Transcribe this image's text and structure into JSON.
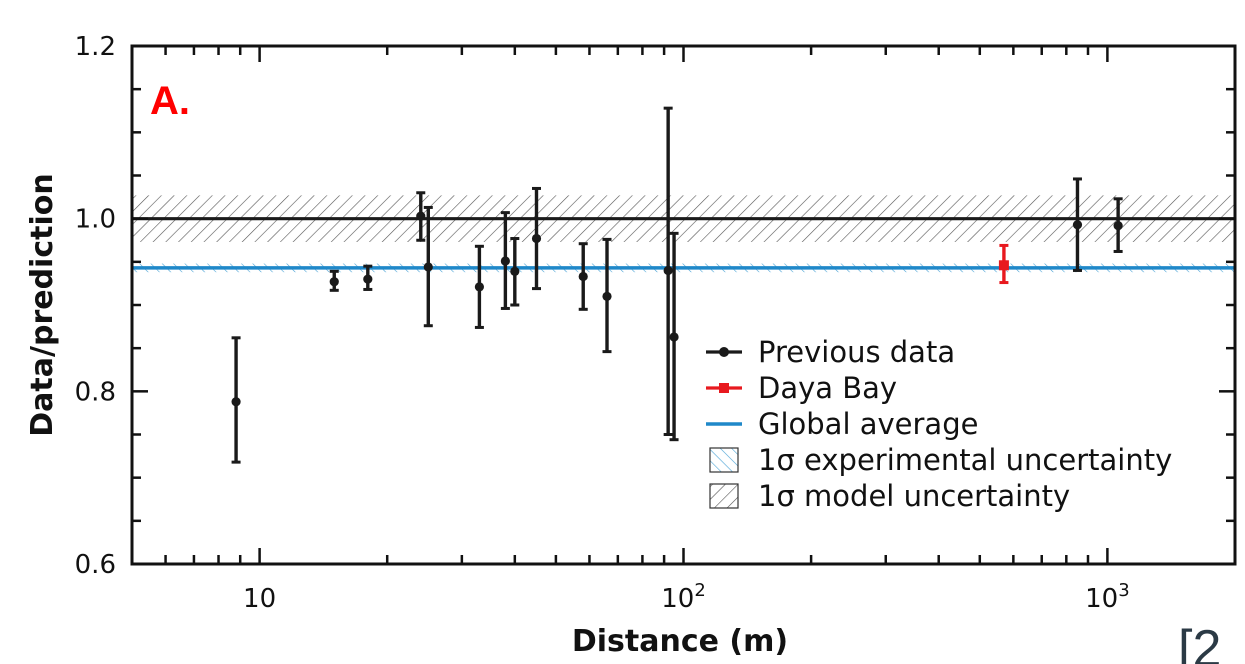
{
  "panel_label": "A.",
  "citation": "[2",
  "colors": {
    "previous": "#1a1a1a",
    "daya_bay": "#e8191f",
    "global": "#1f88c9",
    "panel_label": "#ff0000"
  },
  "chart_data": {
    "type": "scatter",
    "xlabel": "Distance (m)",
    "ylabel": "Data/prediction",
    "xscale": "log",
    "xlim": [
      5,
      2000
    ],
    "ylim": [
      0.6,
      1.2
    ],
    "x_ticks": [
      {
        "value": 10,
        "label": "10",
        "sup": ""
      },
      {
        "value": 100,
        "label": "10",
        "sup": "2"
      },
      {
        "value": 1000,
        "label": "10",
        "sup": "3"
      }
    ],
    "y_ticks": [
      {
        "value": 0.6,
        "label": "0.6"
      },
      {
        "value": 0.8,
        "label": "0.8"
      },
      {
        "value": 1.0,
        "label": "1.0"
      },
      {
        "value": 1.2,
        "label": "1.2"
      }
    ],
    "grid": false,
    "legend_position": "bottom-right",
    "model_line": 1.0,
    "model_band": [
      0.973,
      1.027
    ],
    "global_average": 0.943,
    "global_band": [
      0.938,
      0.948
    ],
    "series": [
      {
        "name": "Previous data",
        "marker": "circle",
        "points": [
          {
            "x": 8.8,
            "y": 0.788,
            "lo": 0.718,
            "hi": 0.862
          },
          {
            "x": 15.0,
            "y": 0.927,
            "lo": 0.917,
            "hi": 0.939
          },
          {
            "x": 18.0,
            "y": 0.93,
            "lo": 0.918,
            "hi": 0.945
          },
          {
            "x": 24.0,
            "y": 1.003,
            "lo": 0.975,
            "hi": 1.03
          },
          {
            "x": 25.0,
            "y": 0.944,
            "lo": 0.876,
            "hi": 1.013
          },
          {
            "x": 33.0,
            "y": 0.921,
            "lo": 0.874,
            "hi": 0.968
          },
          {
            "x": 38.0,
            "y": 0.951,
            "lo": 0.896,
            "hi": 1.007
          },
          {
            "x": 40.0,
            "y": 0.939,
            "lo": 0.9,
            "hi": 0.977
          },
          {
            "x": 45.0,
            "y": 0.977,
            "lo": 0.919,
            "hi": 1.035
          },
          {
            "x": 58.0,
            "y": 0.933,
            "lo": 0.895,
            "hi": 0.971
          },
          {
            "x": 66.0,
            "y": 0.91,
            "lo": 0.846,
            "hi": 0.976
          },
          {
            "x": 92.0,
            "y": 0.94,
            "lo": 0.75,
            "hi": 1.128
          },
          {
            "x": 95.0,
            "y": 0.863,
            "lo": 0.744,
            "hi": 0.983
          },
          {
            "x": 850.0,
            "y": 0.993,
            "lo": 0.94,
            "hi": 1.046
          },
          {
            "x": 1060.0,
            "y": 0.992,
            "lo": 0.962,
            "hi": 1.023
          }
        ]
      },
      {
        "name": "Daya Bay",
        "marker": "square",
        "points": [
          {
            "x": 570.0,
            "y": 0.946,
            "lo": 0.926,
            "hi": 0.969
          }
        ]
      }
    ],
    "legend": [
      {
        "key": "previous",
        "label": "Previous data"
      },
      {
        "key": "daya_bay",
        "label": "Daya Bay"
      },
      {
        "key": "global",
        "label": "Global average"
      },
      {
        "key": "exp_band",
        "label": "1σ experimental uncertainty"
      },
      {
        "key": "model_band",
        "label": "1σ model uncertainty"
      }
    ]
  }
}
